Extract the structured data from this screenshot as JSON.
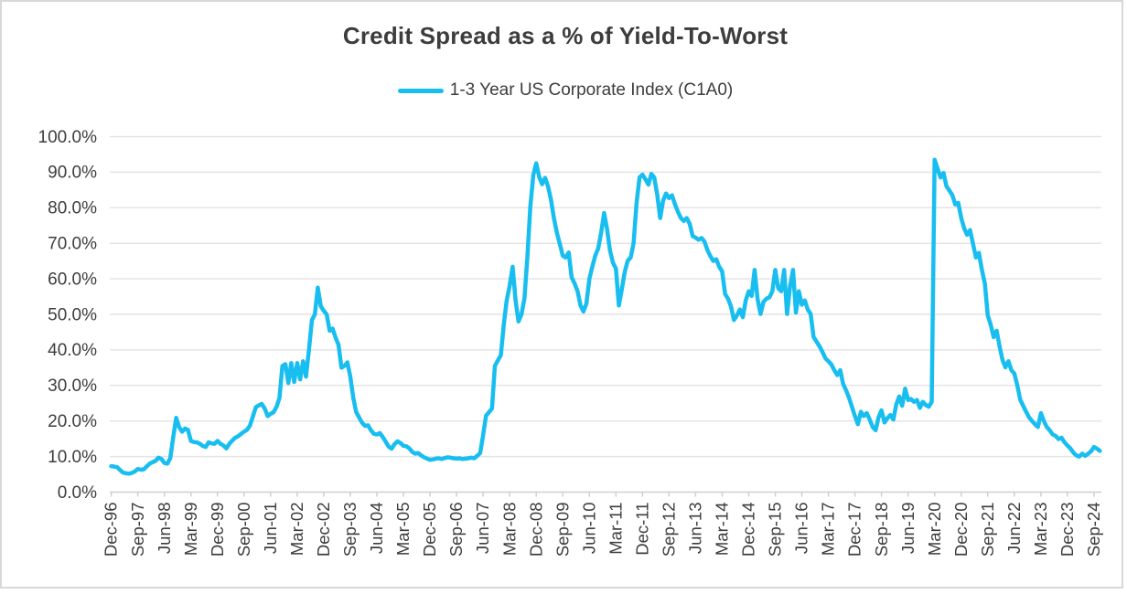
{
  "page": {
    "background": "#ffffff",
    "border_color": "#d8d8d8"
  },
  "chart_data": {
    "type": "line",
    "title": "Credit Spread as a % of Yield-To-Worst",
    "legend": [
      {
        "name": "1-3 Year US Corporate Index (C1A0)",
        "color": "#18bef0",
        "swatch": "thick-rounded-line"
      }
    ],
    "legend_position": "top-center",
    "grid": true,
    "colors": {
      "line": "#18bef0",
      "gridline": "#e4e4e4",
      "axis": "#d0d0d0",
      "text": "#3d3d3d"
    },
    "y_axis": {
      "min": 0,
      "max": 100,
      "tick_step": 10,
      "ticks": [
        "100.0%",
        "90.0%",
        "80.0%",
        "70.0%",
        "60.0%",
        "50.0%",
        "40.0%",
        "30.0%",
        "20.0%",
        "10.0%",
        "0.0%"
      ]
    },
    "x_axis": {
      "tick_labels": [
        "Dec-96",
        "Sep-97",
        "Jun-98",
        "Mar-99",
        "Dec-99",
        "Sep-00",
        "Jun-01",
        "Mar-02",
        "Dec-02",
        "Sep-03",
        "Jun-04",
        "Mar-05",
        "Dec-05",
        "Sep-06",
        "Jun-07",
        "Mar-08",
        "Dec-08",
        "Sep-09",
        "Jun-10",
        "Mar-11",
        "Dec-11",
        "Sep-12",
        "Jun-13",
        "Mar-14",
        "Dec-14",
        "Sep-15",
        "Jun-16",
        "Mar-17",
        "Dec-17",
        "Sep-18",
        "Jun-19",
        "Mar-20",
        "Dec-20",
        "Sep-21",
        "Jun-22",
        "Mar-23",
        "Dec-23",
        "Sep-24"
      ],
      "months_per_tick": 9,
      "label_rotation_deg": 90
    },
    "series": [
      {
        "name": "1-3 Year US Corporate Index (C1A0)",
        "color": "#18bef0",
        "frequency": "monthly",
        "start": "Dec-1996",
        "end": "Nov-2024",
        "unit": "%",
        "values": [
          7.3,
          7.2,
          7.0,
          6.2,
          5.5,
          5.3,
          5.2,
          5.4,
          5.8,
          6.5,
          6.3,
          6.4,
          7.2,
          8.0,
          8.4,
          8.8,
          9.7,
          9.3,
          8.2,
          8.0,
          9.5,
          15.5,
          20.9,
          18.3,
          17.0,
          17.9,
          17.5,
          14.4,
          14.1,
          14.0,
          13.6,
          13.0,
          12.7,
          14.0,
          13.7,
          13.6,
          14.4,
          13.6,
          13.1,
          12.3,
          13.6,
          14.5,
          15.3,
          15.7,
          16.4,
          17.0,
          17.5,
          18.7,
          21.3,
          23.9,
          24.4,
          24.8,
          23.5,
          21.4,
          22.0,
          22.5,
          24.0,
          26.5,
          35.5,
          36.0,
          30.7,
          36.3,
          31.0,
          36.3,
          31.7,
          36.8,
          32.5,
          40.2,
          48.4,
          50.0,
          57.5,
          52.3,
          51.0,
          50.0,
          45.4,
          46.0,
          43.5,
          41.5,
          35.0,
          35.5,
          36.5,
          32.5,
          26.5,
          22.5,
          21.0,
          19.5,
          18.6,
          18.8,
          17.4,
          16.4,
          16.2,
          16.6,
          15.5,
          14.2,
          12.8,
          12.2,
          13.5,
          14.3,
          13.8,
          13.0,
          12.9,
          12.3,
          11.3,
          10.8,
          11.0,
          10.3,
          9.8,
          9.4,
          9.1,
          9.2,
          9.4,
          9.5,
          9.3,
          9.6,
          9.8,
          9.7,
          9.5,
          9.4,
          9.5,
          9.3,
          9.4,
          9.5,
          9.7,
          9.5,
          10.2,
          11.0,
          16.0,
          21.5,
          22.5,
          23.5,
          35.5,
          37.0,
          38.5,
          47.1,
          53.9,
          58.0,
          63.4,
          54.0,
          48.0,
          50.0,
          54.5,
          66.0,
          80.2,
          89.2,
          92.5,
          88.7,
          86.6,
          88.4,
          86.0,
          82.3,
          77.1,
          72.9,
          69.8,
          66.5,
          66.0,
          67.4,
          60.4,
          58.7,
          56.5,
          52.5,
          50.8,
          53.0,
          60.0,
          63.4,
          66.5,
          68.5,
          73.0,
          78.5,
          74.0,
          68.0,
          64.5,
          62.9,
          52.5,
          57.0,
          62.0,
          65.1,
          66.0,
          70.0,
          81.4,
          88.5,
          89.3,
          88.0,
          86.5,
          89.5,
          88.5,
          83.6,
          77.1,
          82.0,
          84.0,
          82.7,
          83.5,
          81.0,
          78.9,
          77.1,
          76.3,
          77.1,
          75.5,
          72.0,
          71.6,
          71.0,
          71.5,
          70.5,
          68.1,
          66.4,
          65.0,
          65.5,
          63.4,
          62.1,
          55.7,
          54.4,
          52.2,
          48.4,
          49.7,
          51.4,
          49.2,
          53.9,
          56.5,
          55.2,
          62.5,
          54.4,
          50.1,
          53.5,
          54.4,
          54.8,
          56.5,
          62.5,
          57.4,
          56.5,
          62.5,
          50.1,
          57.8,
          62.5,
          50.5,
          56.5,
          52.7,
          53.9,
          51.4,
          50.1,
          43.6,
          42.3,
          41.0,
          39.4,
          37.6,
          36.8,
          35.9,
          34.3,
          32.9,
          34.3,
          30.4,
          28.6,
          26.5,
          23.9,
          21.4,
          19.1,
          22.6,
          21.4,
          22.2,
          20.4,
          18.3,
          17.4,
          21.0,
          23.0,
          19.6,
          20.8,
          21.7,
          20.4,
          24.7,
          26.9,
          24.3,
          29.1,
          25.9,
          26.2,
          25.4,
          25.9,
          23.7,
          25.4,
          24.5,
          24.0,
          25.4,
          93.5,
          91.0,
          88.5,
          89.8,
          86.1,
          84.8,
          83.5,
          80.9,
          81.4,
          77.1,
          74.2,
          72.4,
          73.7,
          69.8,
          66.0,
          67.3,
          62.6,
          58.7,
          49.7,
          47.1,
          43.6,
          45.4,
          41.0,
          37.2,
          35.1,
          36.8,
          34.3,
          33.4,
          30.0,
          26.0,
          24.3,
          22.6,
          21.0,
          20.0,
          19.1,
          18.3,
          22.2,
          20.0,
          18.3,
          17.4,
          16.2,
          15.8,
          14.9,
          15.3,
          14.0,
          13.1,
          12.3,
          11.1,
          10.3,
          10.0,
          10.8,
          10.2,
          10.8,
          11.5,
          12.7,
          12.2,
          11.6
        ]
      }
    ]
  }
}
